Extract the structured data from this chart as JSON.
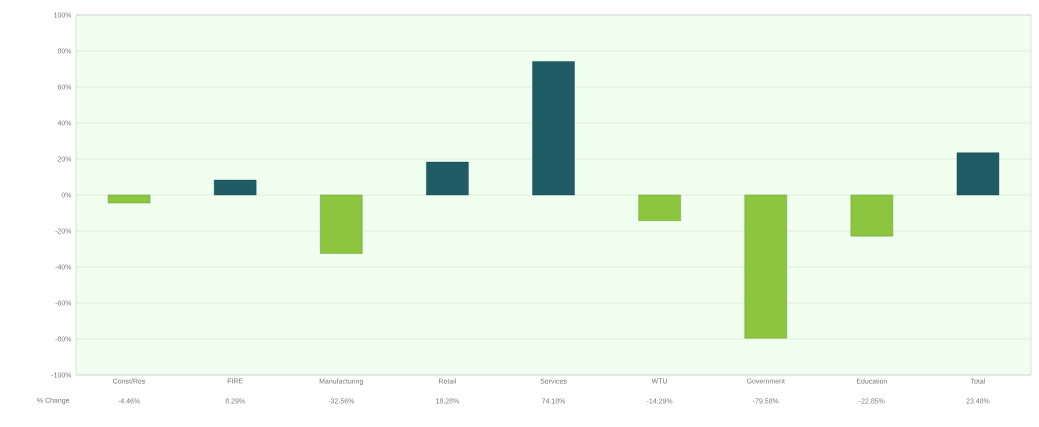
{
  "chart_data": {
    "type": "bar",
    "categories": [
      "Const/Res",
      "FIRE",
      "Manufacturing",
      "Retail",
      "Services",
      "WTU",
      "Government",
      "Education",
      "Total"
    ],
    "values": [
      -4.46,
      8.29,
      -32.56,
      18.28,
      74.18,
      -14.29,
      -79.58,
      -22.85,
      23.48
    ],
    "colors": [
      "#8cc63f",
      "#1f5c66",
      "#8cc63f",
      "#1f5c66",
      "#1f5c66",
      "#8cc63f",
      "#8cc63f",
      "#8cc63f",
      "#1f5c66"
    ],
    "value_labels": [
      "-4.46%",
      "8.29%",
      "-32.56%",
      "18.28%",
      "74.18%",
      "-14.29%",
      "-79.58%",
      "-22.85%",
      "23.48%"
    ],
    "annotations": [
      "% Change"
    ],
    "ylim": [
      -100,
      100
    ],
    "yticks": [
      {
        "value": -100,
        "label": "-100%"
      },
      {
        "value": -80,
        "label": "-80%"
      },
      {
        "value": -60,
        "label": "-60%"
      },
      {
        "value": -40,
        "label": "-40%"
      },
      {
        "value": -20,
        "label": "-20%"
      },
      {
        "value": 0,
        "label": "0%"
      },
      {
        "value": 20,
        "label": "20%"
      },
      {
        "value": 40,
        "label": "40%"
      },
      {
        "value": 60,
        "label": "60%"
      },
      {
        "value": 80,
        "label": "80%"
      },
      {
        "value": 100,
        "label": "100%"
      }
    ],
    "grid": "y"
  }
}
